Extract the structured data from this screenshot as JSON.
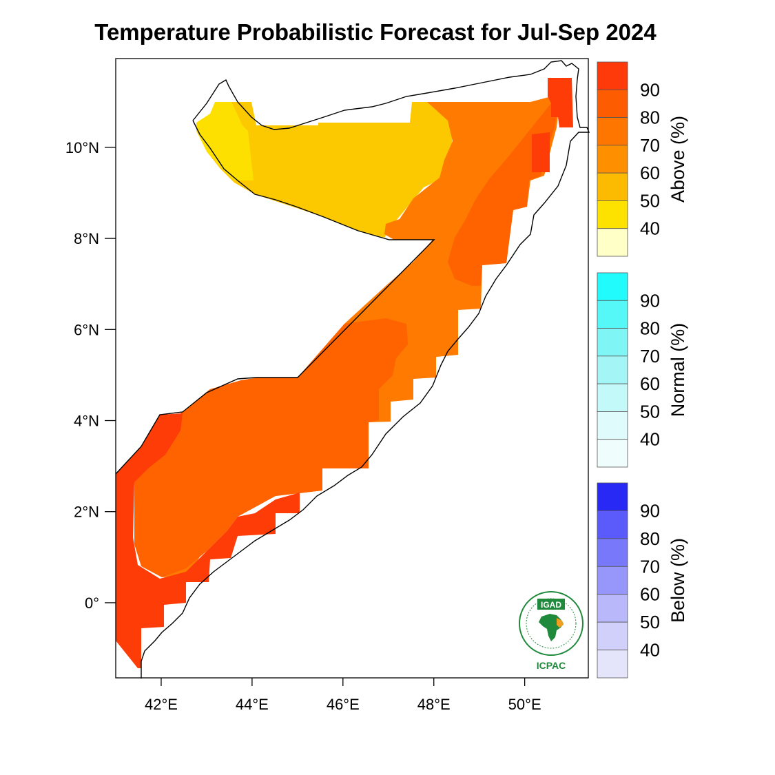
{
  "title": "Temperature Probabilistic Forecast for Jul-Sep 2024",
  "map": {
    "lon_range": [
      41.0,
      51.4
    ],
    "lat_range": [
      -1.65,
      11.95
    ],
    "x_ticks": [
      {
        "lon": 42,
        "label": "42°E"
      },
      {
        "lon": 44,
        "label": "44°E"
      },
      {
        "lon": 46,
        "label": "46°E"
      },
      {
        "lon": 48,
        "label": "48°E"
      },
      {
        "lon": 50,
        "label": "50°E"
      }
    ],
    "y_ticks": [
      {
        "lat": 10,
        "label": "10°N"
      },
      {
        "lat": 8,
        "label": "8°N"
      },
      {
        "lat": 6,
        "label": "6°N"
      },
      {
        "lat": 4,
        "label": "4°N"
      },
      {
        "lat": 2,
        "label": "2°N"
      },
      {
        "lat": 0,
        "label": "0°"
      }
    ]
  },
  "colorbars": [
    {
      "title": "Above (%)",
      "labels": [
        "90",
        "80",
        "70",
        "60",
        "50",
        "40"
      ],
      "colors": [
        "#fe3a0a",
        "#fe5c00",
        "#fe7500",
        "#fe9000",
        "#fcbb00",
        "#fde200",
        "#ffffc8"
      ]
    },
    {
      "title": "Normal (%)",
      "labels": [
        "90",
        "80",
        "70",
        "60",
        "50",
        "40"
      ],
      "colors": [
        "#22fbfb",
        "#55f7f7",
        "#80f5f5",
        "#a4f6f6",
        "#c4f9f9",
        "#dffbfb",
        "#f0fdfd"
      ]
    },
    {
      "title": "Below (%)",
      "labels": [
        "90",
        "80",
        "70",
        "60",
        "50",
        "40"
      ],
      "colors": [
        "#2929f5",
        "#5b5bfb",
        "#7878fb",
        "#9797fb",
        "#b8b8fb",
        "#d0d0fb",
        "#e4e4fb"
      ]
    }
  ],
  "logo": {
    "top_text": "IGAD",
    "bottom_text": "ICPAC",
    "colors": {
      "green": "#1f8a3c",
      "orange": "#f0a020"
    }
  }
}
